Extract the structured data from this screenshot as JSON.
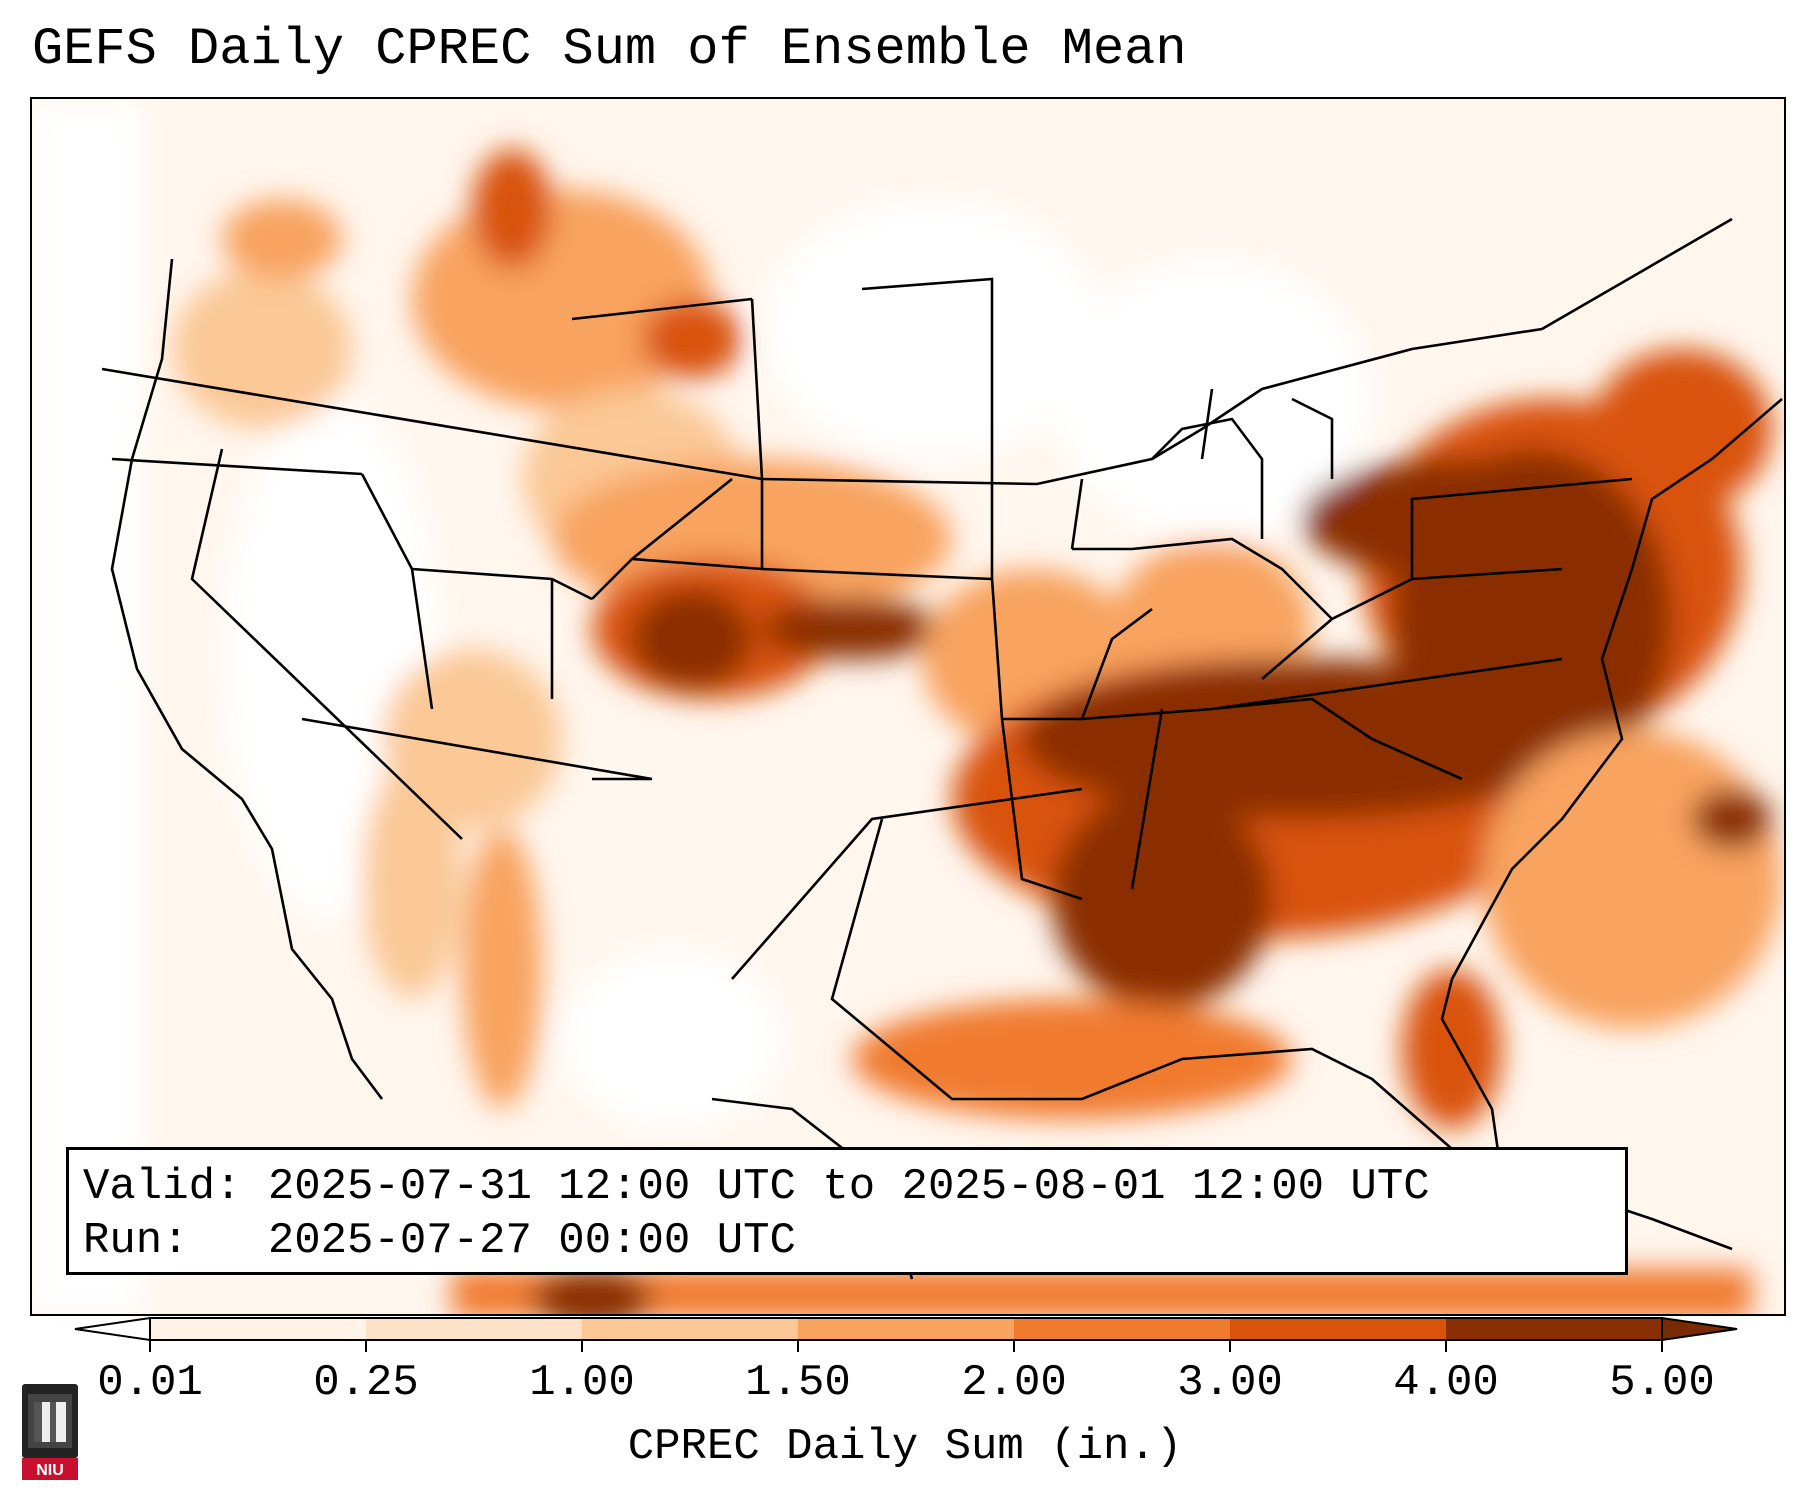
{
  "title": "GEFS Daily CPREC Sum of Ensemble Mean",
  "info": {
    "valid_label": "Valid:",
    "valid_value": "2025-07-31 12:00 UTC to 2025-08-01 12:00 UTC",
    "run_label": "Run:",
    "run_value": "2025-07-27 00:00 UTC"
  },
  "colorbar": {
    "label": "CPREC Daily Sum (in.)",
    "ticks": [
      "0.01",
      "0.25",
      "1.00",
      "1.50",
      "2.00",
      "3.00",
      "4.00",
      "5.00"
    ],
    "colors": [
      "#fff3e8",
      "#fde2c8",
      "#fbc896",
      "#f8a35e",
      "#f07a2e",
      "#d9530b",
      "#8a2e04"
    ],
    "under_color": "#ffffff",
    "over_color": "#7a2a03",
    "extend": "both"
  },
  "logo": {
    "text": "NIU",
    "color": "#c8102e"
  }
}
